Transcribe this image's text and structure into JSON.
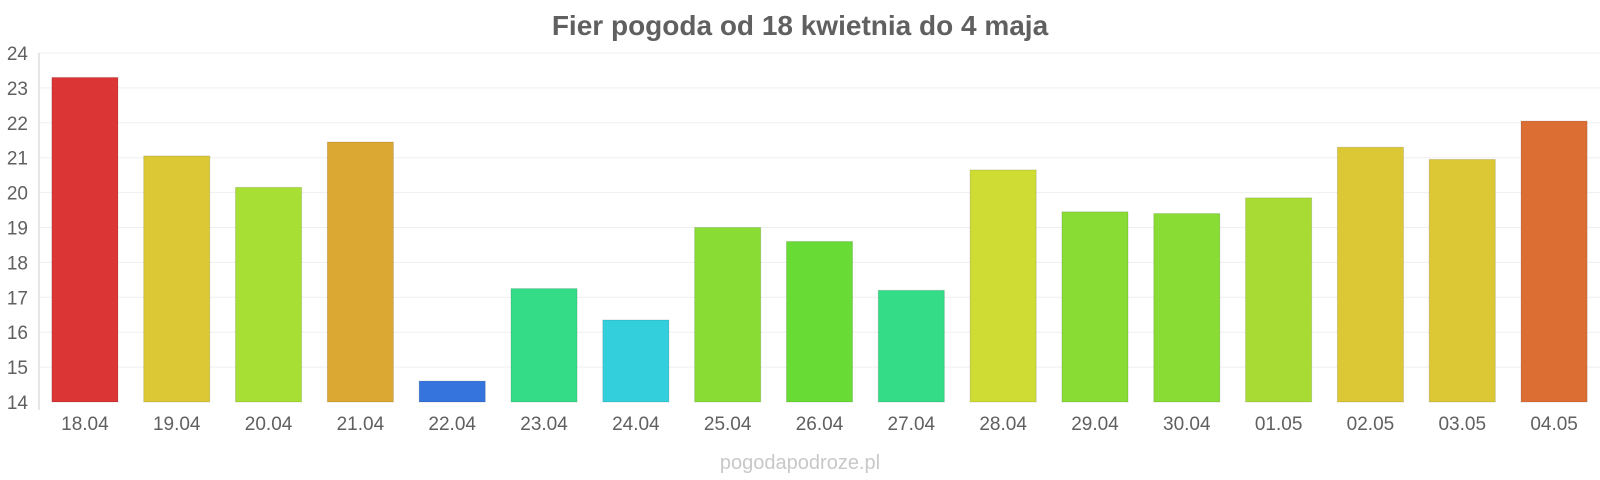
{
  "chart_data": {
    "type": "bar",
    "title": "Fier pogoda od 18 kwietnia do 4 maja",
    "xlabel": "",
    "ylabel": "",
    "ylim": [
      14,
      24
    ],
    "yticks": [
      14,
      15,
      16,
      17,
      18,
      19,
      20,
      21,
      22,
      23,
      24
    ],
    "grid": true,
    "categories": [
      "18.04",
      "19.04",
      "20.04",
      "21.04",
      "22.04",
      "23.04",
      "24.04",
      "25.04",
      "26.04",
      "27.04",
      "28.04",
      "29.04",
      "30.04",
      "01.05",
      "02.05",
      "03.05",
      "04.05"
    ],
    "values": [
      23.3,
      21.05,
      20.15,
      21.45,
      14.6,
      17.25,
      16.35,
      19.0,
      18.6,
      17.2,
      20.65,
      19.45,
      19.4,
      19.85,
      21.3,
      20.95,
      22.05
    ],
    "colors": [
      "#dc3535",
      "#dcc834",
      "#a8df34",
      "#dca834",
      "#3574dc",
      "#34dc88",
      "#34cfdc",
      "#88dc34",
      "#68dc34",
      "#34dc88",
      "#cedc34",
      "#88dc34",
      "#88dc34",
      "#a8dc34",
      "#dcc834",
      "#dcc834",
      "#dc6e34"
    ]
  },
  "watermark": "pogodapodroze.pl"
}
